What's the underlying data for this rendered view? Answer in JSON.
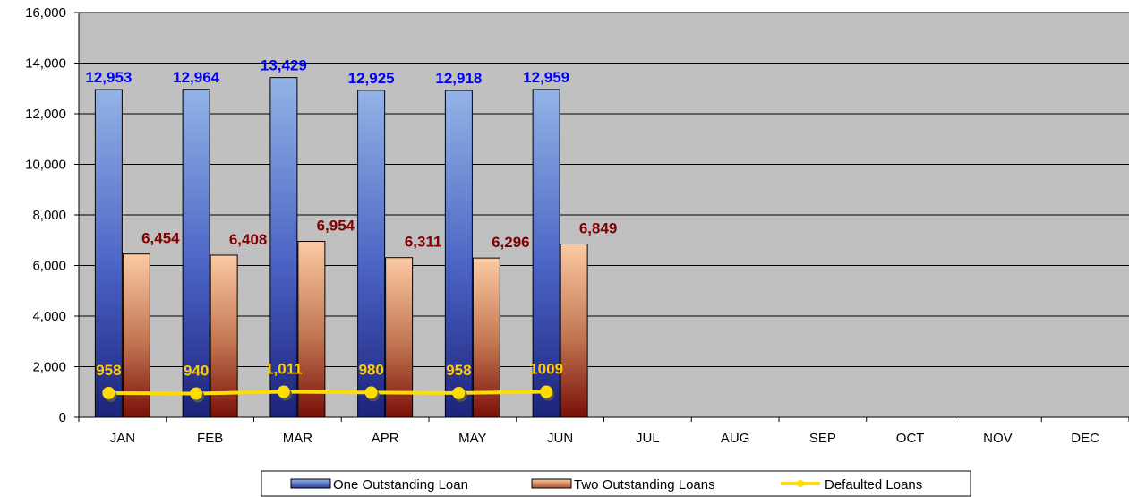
{
  "chart_data": {
    "type": "bar",
    "categories": [
      "JAN",
      "FEB",
      "MAR",
      "APR",
      "MAY",
      "JUN",
      "JUL",
      "AUG",
      "SEP",
      "OCT",
      "NOV",
      "DEC"
    ],
    "series": [
      {
        "name": "One Outstanding Loan",
        "kind": "bar",
        "values": [
          12953,
          12964,
          13429,
          12925,
          12918,
          12959,
          null,
          null,
          null,
          null,
          null,
          null
        ],
        "labels": [
          "12,953",
          "12,964",
          "13,429",
          "12,925",
          "12,918",
          "12,959"
        ],
        "color": "#3b5fbf"
      },
      {
        "name": "Two Outstanding Loans",
        "kind": "bar",
        "values": [
          6454,
          6408,
          6954,
          6311,
          6296,
          6849,
          null,
          null,
          null,
          null,
          null,
          null
        ],
        "labels": [
          "6,454",
          "6,408",
          "6,954",
          "6,311",
          "6,296",
          "6,849"
        ],
        "color": "#e8a070"
      },
      {
        "name": "Defaulted Loans",
        "kind": "line",
        "values": [
          958,
          940,
          1011,
          980,
          958,
          1009,
          null,
          null,
          null,
          null,
          null,
          null
        ],
        "labels": [
          "958",
          "940",
          "1,011",
          "980",
          "958",
          "1009"
        ],
        "color": "#ffdd00"
      }
    ],
    "y_ticks": [
      "0",
      "2,000",
      "4,000",
      "6,000",
      "8,000",
      "10,000",
      "12,000",
      "14,000",
      "16,000"
    ],
    "ylim": [
      0,
      16000
    ],
    "grid": true,
    "legend": "bottom",
    "colors": {
      "plot_bg": "#c0c0c0",
      "label_one": "#0000ff",
      "label_two": "#800000",
      "label_defaulted": "#ffcc00"
    }
  }
}
